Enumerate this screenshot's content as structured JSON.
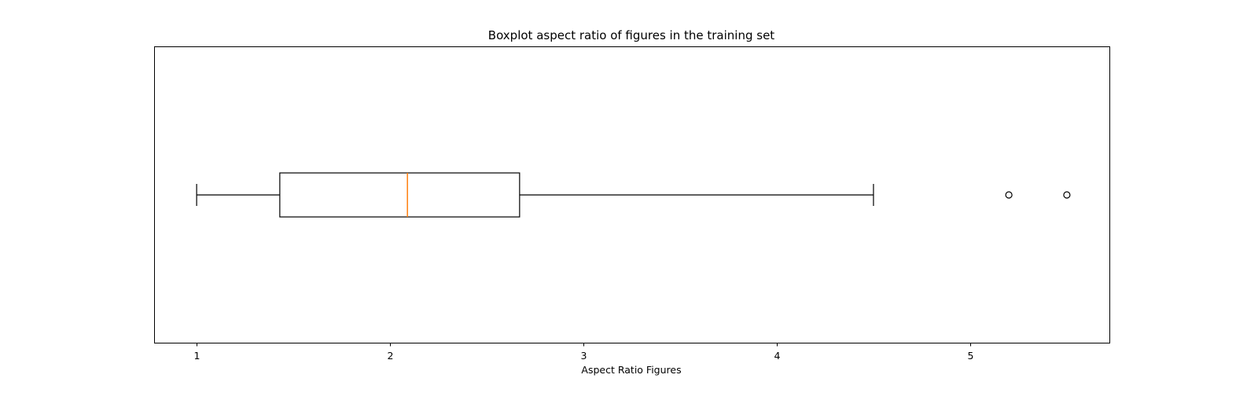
{
  "chart_data": {
    "type": "boxplot",
    "orientation": "horizontal",
    "title": "Boxplot aspect ratio of figures in the training set",
    "xlabel": "Aspect Ratio Figures",
    "ylabel": "",
    "xlim": [
      0.78,
      5.72
    ],
    "xticks": [
      1,
      2,
      3,
      4,
      5
    ],
    "xtick_labels": [
      "1",
      "2",
      "3",
      "4",
      "5"
    ],
    "yticks_visible": false,
    "grid": false,
    "series": [
      {
        "whisker_low": 1.0,
        "q1": 1.43,
        "median": 2.09,
        "q3": 2.67,
        "whisker_high": 4.5,
        "outliers": [
          5.2,
          5.5
        ]
      }
    ],
    "colors": {
      "box": "#000000",
      "median": "#ff7f0e",
      "whisker": "#000000",
      "flier": "#000000"
    }
  }
}
